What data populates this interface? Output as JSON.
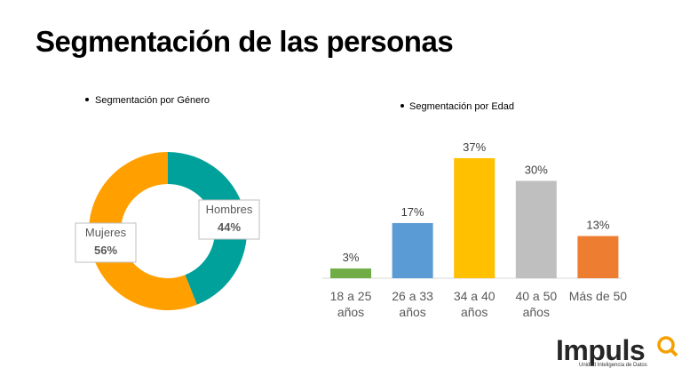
{
  "title": "Segmentación de las personas",
  "chart_data": [
    {
      "type": "donut",
      "subtitle": "Segmentación por Género",
      "categories": [
        "Hombres",
        "Mujeres"
      ],
      "values": [
        44,
        56
      ],
      "value_labels": [
        "44%",
        "56%"
      ],
      "colors": [
        "#00a19a",
        "#ffa000"
      ]
    },
    {
      "type": "bar",
      "subtitle": "Segmentación por Edad",
      "categories": [
        "18 a 25 años",
        "26 a 33 años",
        "34 a 40 años",
        "40 a 50 años",
        "Más de 50"
      ],
      "values": [
        3,
        17,
        37,
        30,
        13
      ],
      "value_labels": [
        "3%",
        "17%",
        "37%",
        "30%",
        "13%"
      ],
      "colors": [
        "#70ad47",
        "#5b9bd5",
        "#ffc000",
        "#bfbfbf",
        "#ed7d31"
      ]
    }
  ],
  "logo": {
    "name": "Impuls",
    "tagline": "Unidad Inteligencia de Datos"
  }
}
